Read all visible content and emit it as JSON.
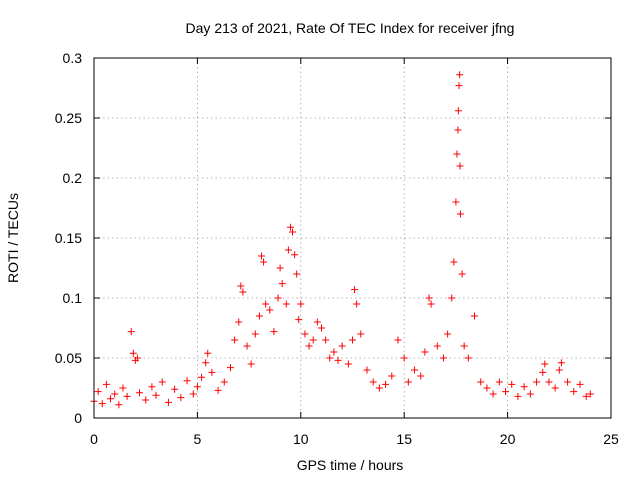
{
  "chart_data": {
    "type": "scatter",
    "title": "Day 213 of 2021, Rate Of TEC Index for receiver jfng",
    "xlabel": "GPS time / hours",
    "ylabel": "ROTI / TECUs",
    "xlim": [
      0,
      25
    ],
    "ylim": [
      0,
      0.3
    ],
    "xticks": [
      0,
      5,
      10,
      15,
      20,
      25
    ],
    "xtick_labels": [
      "0",
      "5",
      "10",
      "15",
      "20",
      "25"
    ],
    "yticks": [
      0,
      0.05,
      0.1,
      0.15,
      0.2,
      0.25,
      0.3
    ],
    "ytick_labels": [
      "0",
      "0.05",
      "0.1",
      "0.15",
      "0.2",
      "0.25",
      "0.3"
    ],
    "grid": true,
    "marker": "+",
    "color": "#ff0000",
    "series": [
      {
        "name": "ROTI",
        "points": [
          [
            0.0,
            0.014
          ],
          [
            0.2,
            0.022
          ],
          [
            0.4,
            0.012
          ],
          [
            0.6,
            0.028
          ],
          [
            0.8,
            0.016
          ],
          [
            1.0,
            0.02
          ],
          [
            1.2,
            0.011
          ],
          [
            1.4,
            0.025
          ],
          [
            1.6,
            0.018
          ],
          [
            1.8,
            0.072
          ],
          [
            1.9,
            0.054
          ],
          [
            2.0,
            0.048
          ],
          [
            2.1,
            0.05
          ],
          [
            2.2,
            0.021
          ],
          [
            2.5,
            0.015
          ],
          [
            2.8,
            0.026
          ],
          [
            3.0,
            0.019
          ],
          [
            3.3,
            0.03
          ],
          [
            3.6,
            0.013
          ],
          [
            3.9,
            0.024
          ],
          [
            4.2,
            0.017
          ],
          [
            4.5,
            0.031
          ],
          [
            4.8,
            0.02
          ],
          [
            5.0,
            0.026
          ],
          [
            5.2,
            0.034
          ],
          [
            5.4,
            0.046
          ],
          [
            5.5,
            0.054
          ],
          [
            5.7,
            0.038
          ],
          [
            6.0,
            0.023
          ],
          [
            6.3,
            0.03
          ],
          [
            6.6,
            0.042
          ],
          [
            6.8,
            0.065
          ],
          [
            7.0,
            0.08
          ],
          [
            7.1,
            0.11
          ],
          [
            7.2,
            0.105
          ],
          [
            7.4,
            0.06
          ],
          [
            7.6,
            0.045
          ],
          [
            7.8,
            0.07
          ],
          [
            8.0,
            0.085
          ],
          [
            8.1,
            0.135
          ],
          [
            8.2,
            0.13
          ],
          [
            8.3,
            0.095
          ],
          [
            8.5,
            0.09
          ],
          [
            8.7,
            0.072
          ],
          [
            8.9,
            0.1
          ],
          [
            9.0,
            0.125
          ],
          [
            9.1,
            0.112
          ],
          [
            9.3,
            0.095
          ],
          [
            9.4,
            0.14
          ],
          [
            9.5,
            0.159
          ],
          [
            9.6,
            0.155
          ],
          [
            9.7,
            0.136
          ],
          [
            9.8,
            0.12
          ],
          [
            9.9,
            0.082
          ],
          [
            10.0,
            0.095
          ],
          [
            10.2,
            0.07
          ],
          [
            10.4,
            0.06
          ],
          [
            10.6,
            0.065
          ],
          [
            10.8,
            0.08
          ],
          [
            11.0,
            0.075
          ],
          [
            11.2,
            0.065
          ],
          [
            11.4,
            0.05
          ],
          [
            11.6,
            0.055
          ],
          [
            11.8,
            0.048
          ],
          [
            12.0,
            0.06
          ],
          [
            12.3,
            0.045
          ],
          [
            12.5,
            0.065
          ],
          [
            12.6,
            0.107
          ],
          [
            12.7,
            0.095
          ],
          [
            12.9,
            0.07
          ],
          [
            13.2,
            0.04
          ],
          [
            13.5,
            0.03
          ],
          [
            13.8,
            0.025
          ],
          [
            14.1,
            0.028
          ],
          [
            14.4,
            0.035
          ],
          [
            14.7,
            0.065
          ],
          [
            15.0,
            0.05
          ],
          [
            15.2,
            0.03
          ],
          [
            15.5,
            0.04
          ],
          [
            15.8,
            0.035
          ],
          [
            16.0,
            0.055
          ],
          [
            16.2,
            0.1
          ],
          [
            16.3,
            0.095
          ],
          [
            16.6,
            0.06
          ],
          [
            16.9,
            0.05
          ],
          [
            17.1,
            0.07
          ],
          [
            17.3,
            0.1
          ],
          [
            17.4,
            0.13
          ],
          [
            17.5,
            0.18
          ],
          [
            17.55,
            0.22
          ],
          [
            17.6,
            0.24
          ],
          [
            17.62,
            0.256
          ],
          [
            17.65,
            0.277
          ],
          [
            17.68,
            0.286
          ],
          [
            17.7,
            0.21
          ],
          [
            17.72,
            0.17
          ],
          [
            17.8,
            0.12
          ],
          [
            17.9,
            0.06
          ],
          [
            18.1,
            0.05
          ],
          [
            18.4,
            0.085
          ],
          [
            18.7,
            0.03
          ],
          [
            19.0,
            0.025
          ],
          [
            19.3,
            0.02
          ],
          [
            19.6,
            0.03
          ],
          [
            19.9,
            0.022
          ],
          [
            20.2,
            0.028
          ],
          [
            20.5,
            0.018
          ],
          [
            20.8,
            0.026
          ],
          [
            21.1,
            0.02
          ],
          [
            21.4,
            0.03
          ],
          [
            21.7,
            0.038
          ],
          [
            21.8,
            0.045
          ],
          [
            22.0,
            0.03
          ],
          [
            22.3,
            0.025
          ],
          [
            22.5,
            0.04
          ],
          [
            22.6,
            0.046
          ],
          [
            22.9,
            0.03
          ],
          [
            23.2,
            0.022
          ],
          [
            23.5,
            0.028
          ],
          [
            23.8,
            0.018
          ],
          [
            24.0,
            0.02
          ]
        ]
      }
    ]
  }
}
